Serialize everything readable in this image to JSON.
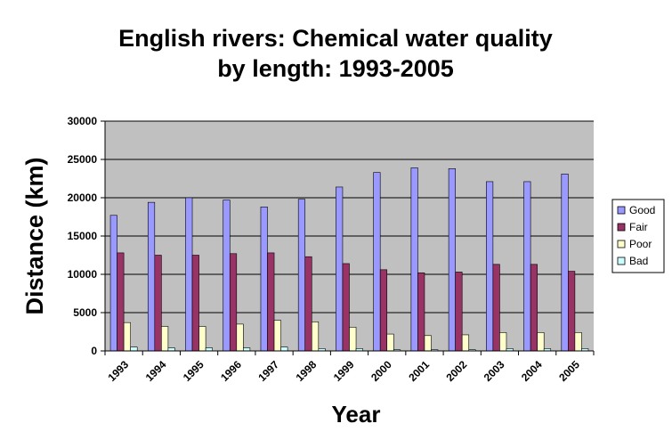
{
  "chart_data": {
    "type": "bar",
    "title_lines": [
      "English rivers: Chemical water quality",
      "by length: 1993-2005"
    ],
    "xlabel": "Year",
    "ylabel": "Distance (km)",
    "ylim": [
      0,
      30000
    ],
    "yticks": [
      0,
      5000,
      10000,
      15000,
      20000,
      25000,
      30000
    ],
    "grid": true,
    "legend_position": "right",
    "categories": [
      "1993",
      "1994",
      "1995",
      "1996",
      "1997",
      "1998",
      "1999",
      "2000",
      "2001",
      "2002",
      "2003",
      "2004",
      "2005"
    ],
    "series": [
      {
        "name": "Good",
        "color": "#9999ff",
        "values": [
          17700,
          19400,
          20000,
          19700,
          18800,
          19800,
          21400,
          23300,
          23900,
          23800,
          22100,
          22100,
          23100
        ]
      },
      {
        "name": "Fair",
        "color": "#993366",
        "values": [
          12800,
          12500,
          12500,
          12700,
          12800,
          12300,
          11400,
          10600,
          10200,
          10300,
          11300,
          11300,
          10400
        ]
      },
      {
        "name": "Poor",
        "color": "#ffffcc",
        "values": [
          3700,
          3200,
          3200,
          3500,
          4000,
          3800,
          3100,
          2200,
          2000,
          2100,
          2400,
          2400,
          2400
        ]
      },
      {
        "name": "Bad",
        "color": "#ccffff",
        "values": [
          500,
          400,
          400,
          400,
          500,
          300,
          300,
          150,
          150,
          150,
          300,
          300,
          300
        ]
      }
    ],
    "plot_background": "#c0c0c0"
  }
}
